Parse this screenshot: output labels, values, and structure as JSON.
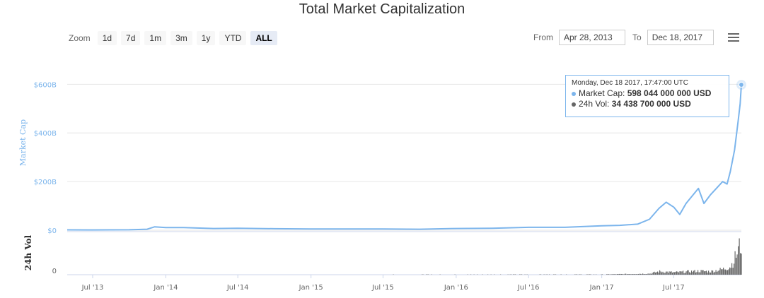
{
  "title": "Total Market Capitalization",
  "zoom": {
    "label": "Zoom",
    "buttons": [
      "1d",
      "7d",
      "1m",
      "3m",
      "1y",
      "YTD",
      "ALL"
    ],
    "active": "ALL"
  },
  "range": {
    "from_label": "From",
    "from_value": "Apr 28, 2013",
    "to_label": "To",
    "to_value": "Dec 18, 2017"
  },
  "menu_icon": "hamburger-menu-icon",
  "tooltip": {
    "date": "Monday, Dec 18 2017, 17:47:00 UTC",
    "market_cap_label": "Market Cap: ",
    "market_cap_value": "598 044 000 000 USD",
    "vol_label": "24h Vol: ",
    "vol_value": "34 438 700 000 USD"
  },
  "colors": {
    "market_cap": "#7cb5ec",
    "volume": "#666666",
    "grid": "#e6e6e6"
  },
  "chart_data": {
    "type": "line",
    "title": "Total Market Capitalization",
    "ylabel": "Market Cap",
    "ylabel_volume": "24h Vol",
    "y_ticks": [
      "$0",
      "$200B",
      "$400B",
      "$600B"
    ],
    "y_tick_values": [
      0,
      200,
      400,
      600
    ],
    "ylim": [
      0,
      720
    ],
    "y_unit": "billion USD",
    "vol_ticks": [
      "0"
    ],
    "x_ticks": [
      "Jul '13",
      "Jan '14",
      "Jul '14",
      "Jan '15",
      "Jul '15",
      "Jan '16",
      "Jul '16",
      "Jan '17",
      "Jul '17"
    ],
    "xlim": [
      "2013-04-28",
      "2017-12-18"
    ],
    "grid": true,
    "series": [
      {
        "name": "Market Cap",
        "x": [
          "2013-04-28",
          "2013-07-01",
          "2013-10-01",
          "2013-11-15",
          "2013-12-04",
          "2014-01-01",
          "2014-02-15",
          "2014-05-01",
          "2014-07-01",
          "2014-10-01",
          "2015-01-01",
          "2015-04-01",
          "2015-07-01",
          "2015-10-01",
          "2016-01-01",
          "2016-04-01",
          "2016-07-01",
          "2016-10-01",
          "2017-01-01",
          "2017-02-15",
          "2017-04-01",
          "2017-05-01",
          "2017-05-25",
          "2017-06-12",
          "2017-07-01",
          "2017-07-16",
          "2017-08-01",
          "2017-09-01",
          "2017-09-15",
          "2017-10-01",
          "2017-11-01",
          "2017-11-12",
          "2017-11-20",
          "2017-12-01",
          "2017-12-10",
          "2017-12-15",
          "2017-12-18"
        ],
        "values": [
          1.5,
          1.3,
          1.8,
          4,
          14,
          11,
          11,
          7,
          8,
          6,
          5,
          5,
          5,
          4,
          7,
          8,
          12,
          12,
          18,
          20,
          25,
          45,
          90,
          115,
          95,
          65,
          110,
          172,
          110,
          145,
          200,
          190,
          240,
          330,
          450,
          520,
          598
        ]
      },
      {
        "name": "24h Vol",
        "x": [
          "2013-04-28",
          "2017-01-01",
          "2017-05-01",
          "2017-05-25",
          "2017-07-01",
          "2017-09-01",
          "2017-10-01",
          "2017-11-01",
          "2017-11-20",
          "2017-12-01",
          "2017-12-10",
          "2017-12-18"
        ],
        "values": [
          0.1,
          0.3,
          1.2,
          3.5,
          2.5,
          4,
          3.5,
          6,
          9,
          18,
          28,
          34.4
        ]
      }
    ]
  }
}
